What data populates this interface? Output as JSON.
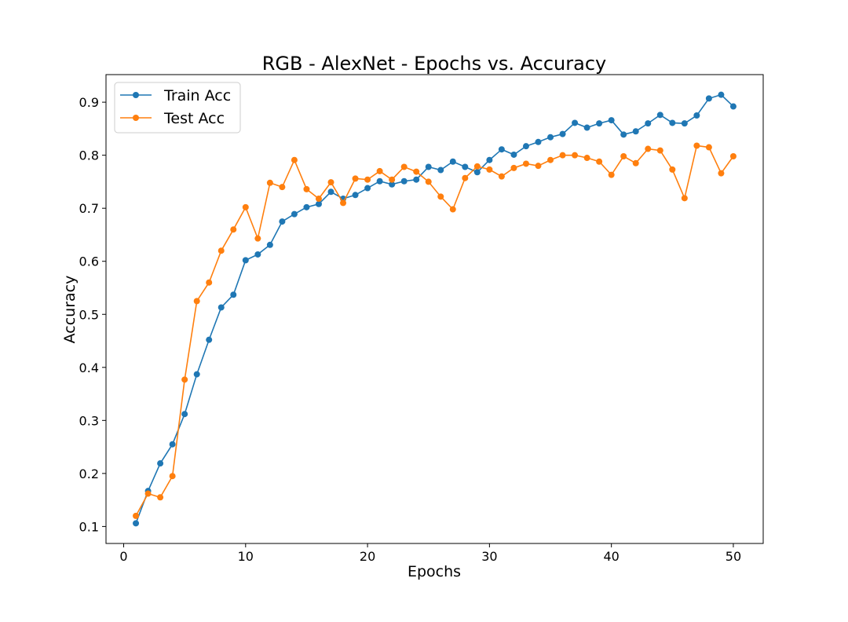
{
  "chart_data": {
    "type": "line",
    "title": "RGB - AlexNet - Epochs vs. Accuracy",
    "xlabel": "Epochs",
    "ylabel": "Accuracy",
    "xlim": [
      -1.45,
      52.45
    ],
    "ylim": [
      0.068,
      0.952
    ],
    "xticks": [
      0,
      10,
      20,
      30,
      40,
      50
    ],
    "yticks": [
      0.1,
      0.2,
      0.3,
      0.4,
      0.5,
      0.6,
      0.7,
      0.8,
      0.9
    ],
    "grid": false,
    "legend": "upper-left",
    "x": [
      1,
      2,
      3,
      4,
      5,
      6,
      7,
      8,
      9,
      10,
      11,
      12,
      13,
      14,
      15,
      16,
      17,
      18,
      19,
      20,
      21,
      22,
      23,
      24,
      25,
      26,
      27,
      28,
      29,
      30,
      31,
      32,
      33,
      34,
      35,
      36,
      37,
      38,
      39,
      40,
      41,
      42,
      43,
      44,
      45,
      46,
      47,
      48,
      49,
      50
    ],
    "series": [
      {
        "name": "Train Acc",
        "color": "#1f77b4",
        "values": [
          0.106,
          0.167,
          0.219,
          0.255,
          0.312,
          0.387,
          0.452,
          0.513,
          0.537,
          0.602,
          0.613,
          0.631,
          0.675,
          0.689,
          0.702,
          0.708,
          0.731,
          0.718,
          0.725,
          0.738,
          0.751,
          0.745,
          0.751,
          0.754,
          0.778,
          0.772,
          0.788,
          0.778,
          0.768,
          0.791,
          0.811,
          0.801,
          0.817,
          0.825,
          0.834,
          0.84,
          0.861,
          0.852,
          0.86,
          0.866,
          0.839,
          0.845,
          0.86,
          0.876,
          0.861,
          0.86,
          0.875,
          0.907,
          0.914,
          0.892
        ]
      },
      {
        "name": "Test Acc",
        "color": "#ff7f0e",
        "values": [
          0.12,
          0.162,
          0.155,
          0.195,
          0.377,
          0.525,
          0.56,
          0.62,
          0.66,
          0.702,
          0.643,
          0.748,
          0.74,
          0.791,
          0.736,
          0.718,
          0.749,
          0.71,
          0.756,
          0.754,
          0.77,
          0.754,
          0.778,
          0.769,
          0.75,
          0.722,
          0.698,
          0.757,
          0.779,
          0.773,
          0.76,
          0.776,
          0.784,
          0.78,
          0.791,
          0.8,
          0.8,
          0.795,
          0.788,
          0.763,
          0.798,
          0.785,
          0.812,
          0.809,
          0.773,
          0.719,
          0.818,
          0.815,
          0.766,
          0.798
        ]
      }
    ]
  }
}
